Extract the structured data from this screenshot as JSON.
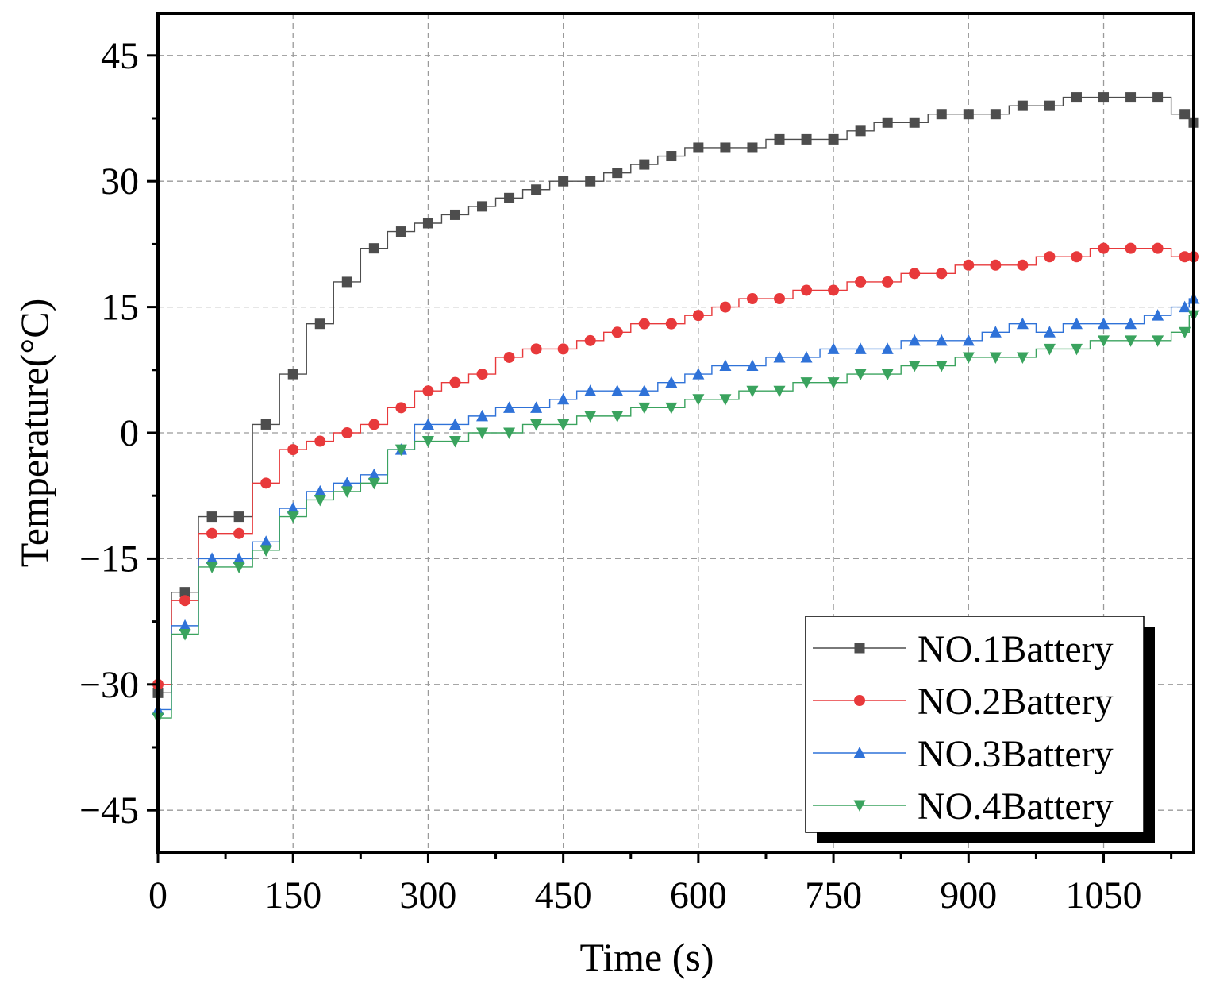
{
  "chart_data": {
    "type": "line",
    "title": "",
    "xlabel": "Time (s)",
    "ylabel": "Temperature(°C)",
    "xlim": [
      0,
      1150
    ],
    "ylim": [
      -50,
      50
    ],
    "xticks": [
      0,
      150,
      300,
      450,
      600,
      750,
      900,
      1050
    ],
    "yticks": [
      -45,
      -30,
      -15,
      0,
      15,
      30,
      45
    ],
    "xtick_labels": [
      "0",
      "150",
      "300",
      "450",
      "600",
      "750",
      "900",
      "1050"
    ],
    "ytick_labels": [
      "−45",
      "−30",
      "−15",
      "0",
      "15",
      "30",
      "45"
    ],
    "grid": true,
    "legend_position": "bottom-right",
    "x": [
      0,
      30,
      60,
      90,
      120,
      150,
      180,
      210,
      240,
      270,
      300,
      330,
      360,
      390,
      420,
      450,
      480,
      510,
      540,
      570,
      600,
      630,
      660,
      690,
      720,
      750,
      780,
      810,
      840,
      870,
      900,
      930,
      960,
      990,
      1020,
      1050,
      1080,
      1110,
      1140,
      1150
    ],
    "series": [
      {
        "name": "NO.1Battery",
        "color": "#4d4d4d",
        "marker": "square",
        "values": [
          -31,
          -19,
          -10,
          -10,
          1,
          7,
          13,
          18,
          22,
          24,
          25,
          26,
          27,
          28,
          29,
          30,
          30,
          31,
          32,
          33,
          34,
          34,
          34,
          35,
          35,
          35,
          36,
          37,
          37,
          38,
          38,
          38,
          39,
          39,
          40,
          40,
          40,
          40,
          38,
          37
        ]
      },
      {
        "name": "NO.2Battery",
        "color": "#e8393b",
        "marker": "circle",
        "values": [
          -30,
          -20,
          -12,
          -12,
          -6,
          -2,
          -1,
          0,
          1,
          3,
          5,
          6,
          7,
          9,
          10,
          10,
          11,
          12,
          13,
          13,
          14,
          15,
          16,
          16,
          17,
          17,
          18,
          18,
          19,
          19,
          20,
          20,
          20,
          21,
          21,
          22,
          22,
          22,
          21,
          21
        ]
      },
      {
        "name": "NO.3Battery",
        "color": "#2f72d8",
        "marker": "triangle-up",
        "values": [
          -33,
          -23,
          -15,
          -15,
          -13,
          -9,
          -7,
          -6,
          -5,
          -2,
          1,
          1,
          2,
          3,
          3,
          4,
          5,
          5,
          5,
          6,
          7,
          8,
          8,
          9,
          9,
          10,
          10,
          10,
          11,
          11,
          11,
          12,
          13,
          12,
          13,
          13,
          13,
          14,
          15,
          16
        ]
      },
      {
        "name": "NO.4Battery",
        "color": "#3aa35e",
        "marker": "triangle-down",
        "values": [
          -34,
          -24,
          -16,
          -16,
          -14,
          -10,
          -8,
          -7,
          -6,
          -2,
          -1,
          -1,
          0,
          0,
          1,
          1,
          2,
          2,
          3,
          3,
          4,
          4,
          5,
          5,
          6,
          6,
          7,
          7,
          8,
          8,
          9,
          9,
          9,
          10,
          10,
          11,
          11,
          11,
          12,
          14
        ]
      }
    ]
  }
}
